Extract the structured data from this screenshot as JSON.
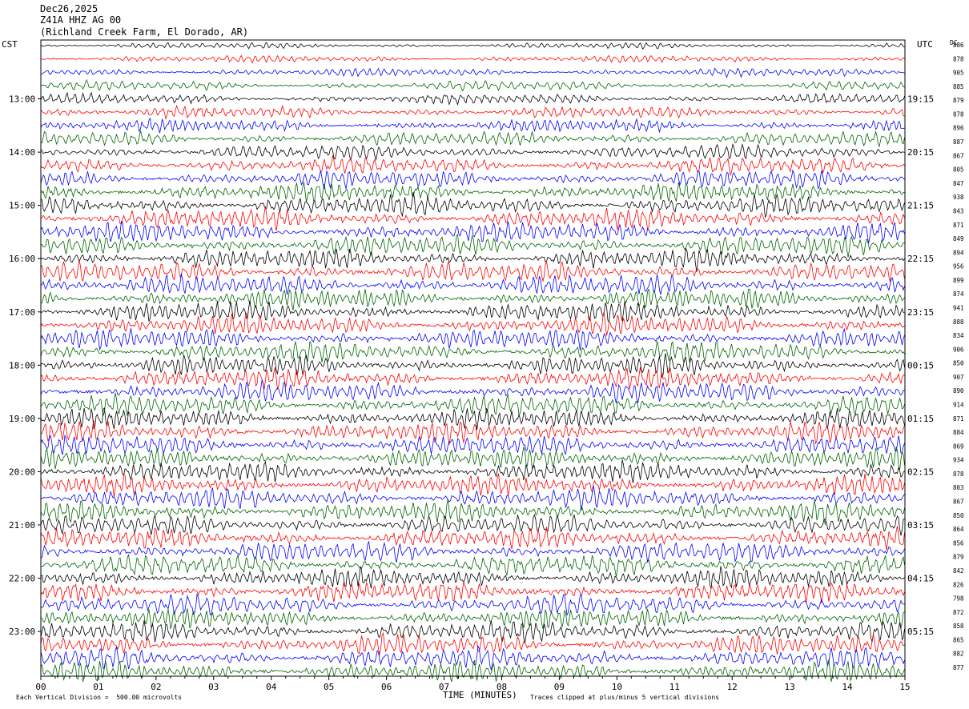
{
  "header": {
    "date": "Dec26,2025",
    "station": "Z41A HHZ AG 00",
    "location": "(Richland Creek Farm, El Dorado, AR)"
  },
  "labels": {
    "left_tz": "CST",
    "right_tz": "UTC",
    "dc": "DC",
    "xlabel": "TIME (MINUTES)",
    "scale_note": "Each Vertical Division =  500.00 microvolts",
    "clip_note": "Traces clipped at plus/minus 5 vertical divisions"
  },
  "chart_data": {
    "type": "line",
    "title": "",
    "xlabel": "TIME (MINUTES)",
    "ylabel": "",
    "xlim": [
      0,
      15
    ],
    "x_ticks": [
      "00",
      "01",
      "02",
      "03",
      "04",
      "05",
      "06",
      "07",
      "08",
      "09",
      "10",
      "11",
      "12",
      "13",
      "14",
      "15"
    ],
    "left_time_labels": [
      "13:00",
      "14:00",
      "15:00",
      "16:00",
      "17:00",
      "18:00",
      "19:00",
      "20:00",
      "21:00",
      "22:00",
      "23:00"
    ],
    "right_time_labels": [
      "19:15",
      "20:15",
      "21:15",
      "22:15",
      "23:15",
      "00:15",
      "01:15",
      "02:15",
      "03:15",
      "04:15",
      "05:15"
    ],
    "trace_colors": [
      "#000000",
      "#ff0000",
      "#0000ff",
      "#006400"
    ],
    "dc_offsets": [
      "886",
      "878",
      "905",
      "885",
      "879",
      "878",
      "896",
      "887",
      "867",
      "805",
      "847",
      "938",
      "843",
      "871",
      "849",
      "894",
      "956",
      "899",
      "874",
      "941",
      "888",
      "834",
      "906",
      "850",
      "907",
      "890",
      "914",
      "871",
      "884",
      "869",
      "934",
      "878",
      "803",
      "867",
      "850",
      "864",
      "856",
      "879",
      "842",
      "826",
      "798",
      "872",
      "858",
      "865",
      "882",
      "877"
    ],
    "trace_count": 48,
    "trace_colors_cycle": "black, red, blue, green",
    "grid": true
  }
}
